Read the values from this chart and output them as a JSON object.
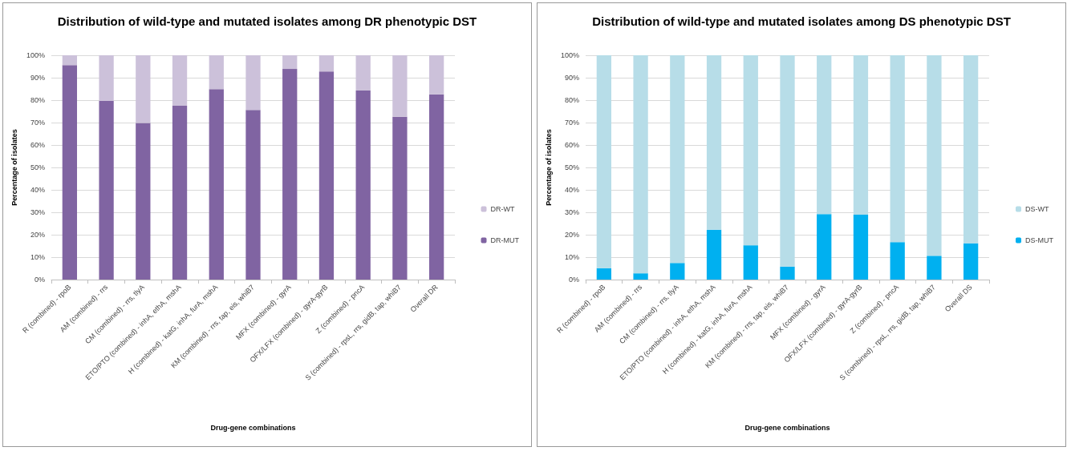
{
  "chart_data": [
    {
      "type": "bar",
      "title": "Distribution of wild-type and mutated isolates among DR phenotypic DST",
      "xlabel": "Drug-gene combinations",
      "ylabel": "Percentage of isolates",
      "stacked": true,
      "legend": "right",
      "grid": "y",
      "categories": [
        "R (combined) - rpoB",
        "AM (combined) - rrs",
        "CM (combined) - rrs, tlyA",
        "ETO/PTO (combined) - inhA, ethA, mshA",
        "H (combined) - katG, inhA, furA, mshA",
        "KM (combined) - rrs, tap, eis, whiB7",
        "MFX (combined) - gyrA",
        "OFX/LFX (combined) - gyrA-gyrB",
        "Z (combined) - pncA",
        "S (combined) - rpsL, rrs, gidB, tap, whiB7",
        "Overall DR"
      ],
      "series": [
        {
          "name": "DR-MUT",
          "color": "#8064a2",
          "values": [
            95.6,
            79.6,
            69.8,
            77.5,
            84.9,
            75.6,
            93.9,
            92.8,
            84.3,
            72.6,
            82.6
          ]
        },
        {
          "name": "DR-WT",
          "color": "#ccc1da",
          "values": [
            4.4,
            20.4,
            30.2,
            22.5,
            15.1,
            24.4,
            6.1,
            7.2,
            15.7,
            27.4,
            17.4
          ]
        }
      ],
      "ylim": [
        0,
        100
      ],
      "yticks": [
        {
          "value": 0,
          "label": "0%"
        },
        {
          "value": 10,
          "label": "10%"
        },
        {
          "value": 20,
          "label": "20%"
        },
        {
          "value": 30,
          "label": "30%"
        },
        {
          "value": 40,
          "label": "40%"
        },
        {
          "value": 50,
          "label": "50%"
        },
        {
          "value": 60,
          "label": "60%"
        },
        {
          "value": 70,
          "label": "70%"
        },
        {
          "value": 80,
          "label": "80%"
        },
        {
          "value": 90,
          "label": "90%"
        },
        {
          "value": 100,
          "label": "100%"
        }
      ]
    },
    {
      "type": "bar",
      "title": "Distribution of wild-type and mutated isolates among DS phenotypic DST",
      "xlabel": "Drug-gene combinations",
      "ylabel": "Percentage of isolates",
      "stacked": true,
      "legend": "right",
      "grid": "y",
      "categories": [
        "R (combined) - rpoB",
        "AM (combined) - rrs",
        "CM (combined) - rrs, tlyA",
        "ETO/PTO (combined) - inhA, ethA, mshA",
        "H (combined) - katG, inhA, furA, mshA",
        "KM (combined) - rrs, tap, eis, whiB7",
        "MFX (combined) - gyrA",
        "OFX/LFX (combined) - gyrA-gyrB",
        "Z (combined) - pncA",
        "S (combined) - rpsL, rrs, gidB, tap, whiB7",
        "Overall DS"
      ],
      "series": [
        {
          "name": "DS-MUT",
          "color": "#00b0f0",
          "values": [
            5.1,
            2.8,
            7.4,
            22.2,
            15.3,
            5.8,
            29.2,
            28.9,
            16.7,
            10.6,
            16.2
          ]
        },
        {
          "name": "DS-WT",
          "color": "#b7dde8",
          "values": [
            94.9,
            97.2,
            92.6,
            77.8,
            84.7,
            94.2,
            70.8,
            71.1,
            83.3,
            89.4,
            83.8
          ]
        }
      ],
      "ylim": [
        0,
        100
      ],
      "yticks": [
        {
          "value": 0,
          "label": "0%"
        },
        {
          "value": 10,
          "label": "10%"
        },
        {
          "value": 20,
          "label": "20%"
        },
        {
          "value": 30,
          "label": "30%"
        },
        {
          "value": 40,
          "label": "40%"
        },
        {
          "value": 50,
          "label": "50%"
        },
        {
          "value": 60,
          "label": "60%"
        },
        {
          "value": 70,
          "label": "70%"
        },
        {
          "value": 80,
          "label": "80%"
        },
        {
          "value": 90,
          "label": "90%"
        },
        {
          "value": 100,
          "label": "100%"
        }
      ]
    }
  ]
}
